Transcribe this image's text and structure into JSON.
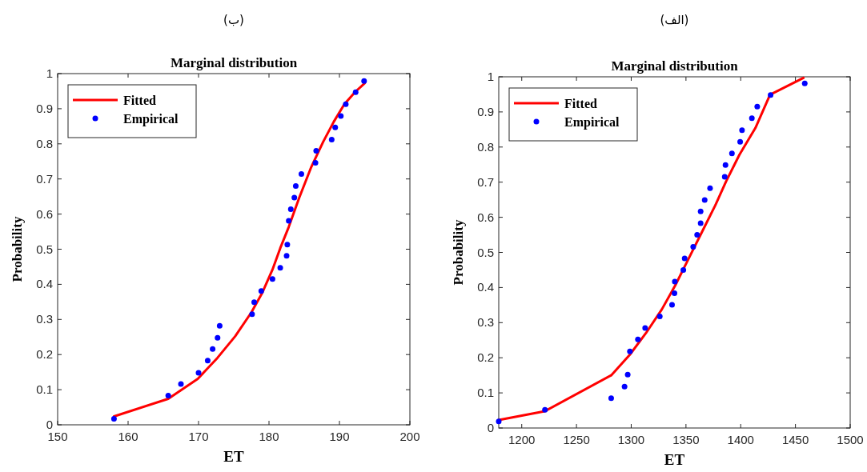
{
  "chart_data": [
    {
      "type": "line",
      "subtitle": "(ب)",
      "title": "Marginal distribution",
      "xlabel": "ET",
      "ylabel": "Probability",
      "xlim": [
        150,
        200
      ],
      "xticks": [
        150,
        160,
        170,
        180,
        190,
        200
      ],
      "ylim": [
        0,
        1
      ],
      "yticks": [
        0,
        0.1,
        0.2,
        0.3,
        0.4,
        0.5,
        0.6,
        0.7,
        0.8,
        0.9,
        1
      ],
      "grid": false,
      "legend": "top left",
      "series": [
        {
          "name": "Fitted",
          "color": "#ff0000",
          "marker": "none",
          "line_style": "solid",
          "x": [
            158,
            165.7,
            169.9,
            172.7,
            175.2,
            177.5,
            179.0,
            180.5,
            181.6,
            182.8,
            184.3,
            186.0,
            187.7,
            189.2,
            190.7,
            192.2,
            193.6
          ],
          "values": [
            0.024,
            0.074,
            0.131,
            0.191,
            0.252,
            0.32,
            0.374,
            0.442,
            0.503,
            0.563,
            0.647,
            0.734,
            0.806,
            0.863,
            0.913,
            0.947,
            0.973
          ]
        },
        {
          "name": "Empirical",
          "type": "scatter",
          "color": "#0000ff",
          "marker": "circle",
          "x": [
            158.0,
            165.7,
            167.5,
            170.0,
            171.3,
            172.0,
            172.7,
            173.0,
            177.6,
            177.9,
            178.9,
            180.5,
            181.6,
            182.5,
            182.6,
            182.8,
            183.1,
            183.6,
            183.8,
            184.6,
            186.6,
            186.7,
            188.9,
            189.4,
            190.2,
            190.9,
            192.3,
            193.5
          ],
          "values": [
            0.017,
            0.083,
            0.116,
            0.148,
            0.183,
            0.216,
            0.248,
            0.282,
            0.315,
            0.349,
            0.381,
            0.415,
            0.447,
            0.481,
            0.513,
            0.581,
            0.614,
            0.647,
            0.68,
            0.714,
            0.746,
            0.78,
            0.812,
            0.847,
            0.879,
            0.913,
            0.947,
            0.979
          ]
        }
      ]
    },
    {
      "type": "line",
      "subtitle": "(الف)",
      "title": "Marginal distribution",
      "xlabel": "ET",
      "ylabel": "Probability",
      "xlim": [
        1179,
        1500
      ],
      "xticks": [
        1200,
        1250,
        1300,
        1350,
        1400,
        1450,
        1500
      ],
      "ylim": [
        0,
        1
      ],
      "yticks": [
        0,
        0.1,
        0.2,
        0.3,
        0.4,
        0.5,
        0.6,
        0.7,
        0.8,
        0.9,
        1
      ],
      "grid": false,
      "legend": "top left",
      "series": [
        {
          "name": "Fitted",
          "color": "#ff0000",
          "marker": "none",
          "line_style": "solid",
          "x": [
            1179,
            1221.2,
            1281.7,
            1298.8,
            1313.4,
            1328,
            1340.2,
            1352.4,
            1364.6,
            1376.8,
            1386.6,
            1398.8,
            1413.4,
            1426.8,
            1457.3
          ],
          "values": [
            0.023,
            0.048,
            0.15,
            0.209,
            0.27,
            0.338,
            0.406,
            0.482,
            0.558,
            0.634,
            0.702,
            0.778,
            0.854,
            0.949,
            0.997
          ]
        },
        {
          "name": "Empirical",
          "type": "scatter",
          "color": "#0000ff",
          "marker": "circle",
          "x": [
            1179,
            1221.2,
            1281.7,
            1293.9,
            1296.8,
            1298.8,
            1306.1,
            1312.7,
            1326.1,
            1337.3,
            1339.5,
            1339.8,
            1347.6,
            1348.8,
            1356.6,
            1360.2,
            1363.4,
            1363.4,
            1367.1,
            1372.0,
            1385.4,
            1386.1,
            1392.0,
            1399.5,
            1401.2,
            1410.2,
            1415.1,
            1427.3,
            1458.5
          ],
          "values": [
            0.019,
            0.052,
            0.085,
            0.118,
            0.152,
            0.218,
            0.252,
            0.285,
            0.318,
            0.351,
            0.384,
            0.417,
            0.45,
            0.483,
            0.516,
            0.55,
            0.583,
            0.617,
            0.649,
            0.683,
            0.715,
            0.749,
            0.782,
            0.815,
            0.848,
            0.882,
            0.915,
            0.948,
            0.981
          ]
        }
      ]
    }
  ]
}
